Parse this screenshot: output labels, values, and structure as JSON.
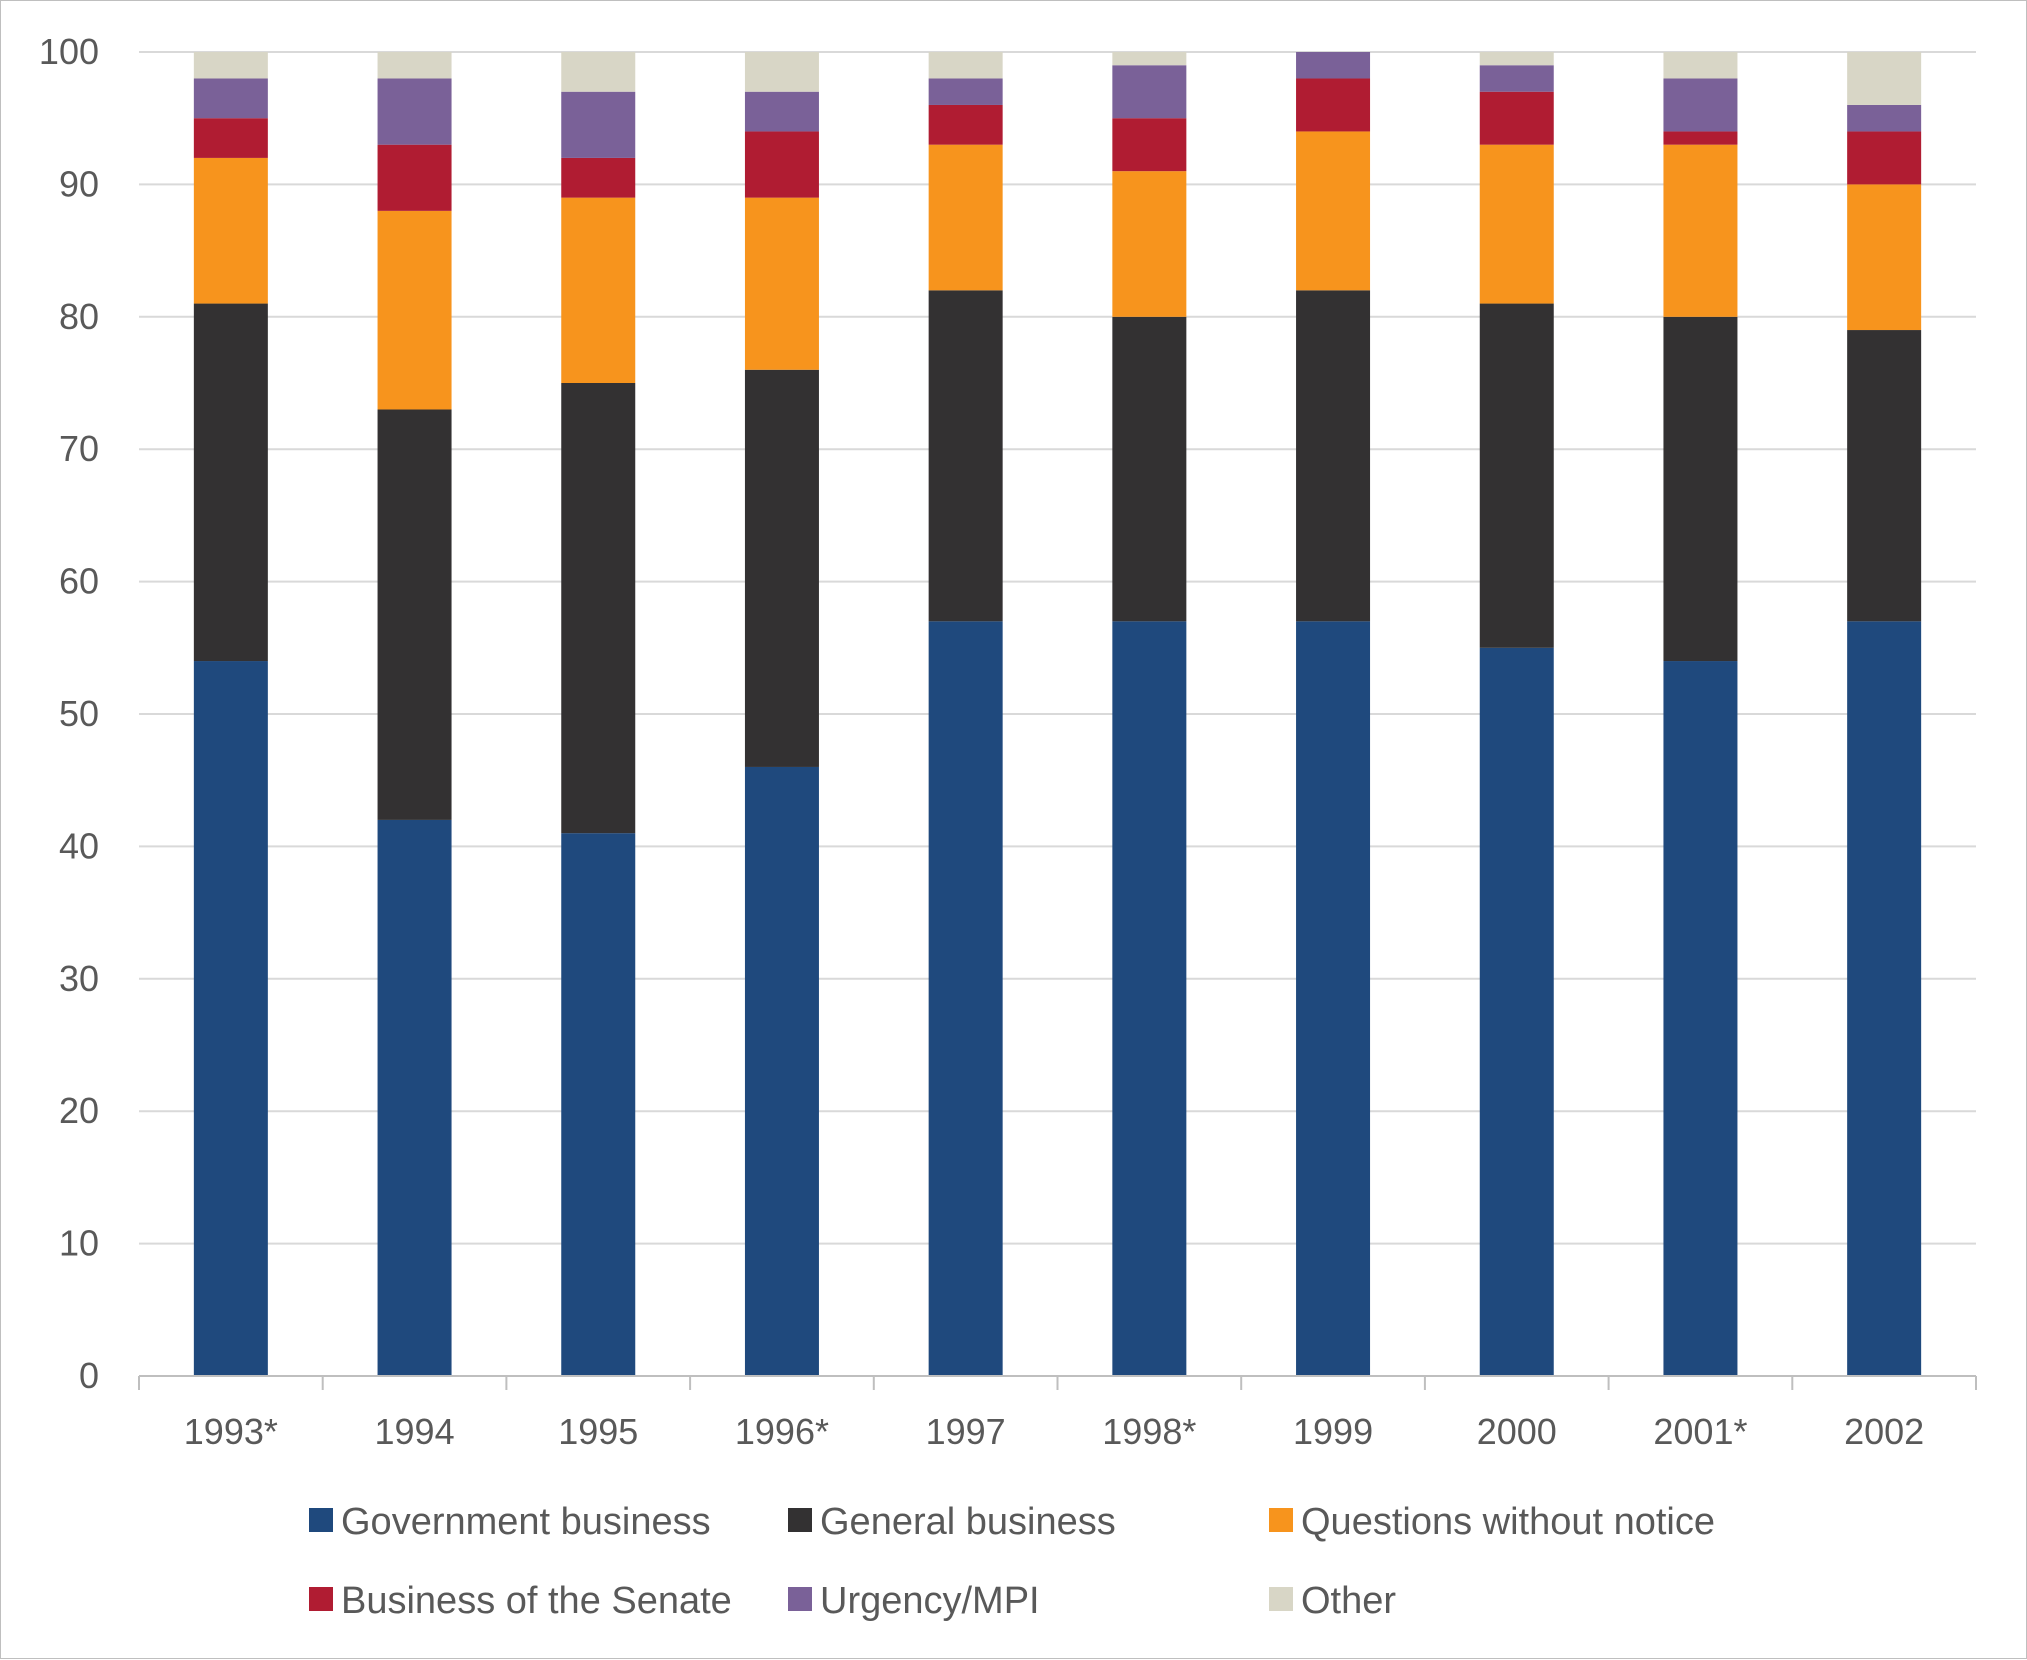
{
  "chart_data": {
    "type": "bar",
    "stacked": true,
    "title": "",
    "xlabel": "",
    "ylabel": "",
    "ylim": [
      0,
      100
    ],
    "yticks": [
      0,
      10,
      20,
      30,
      40,
      50,
      60,
      70,
      80,
      90,
      100
    ],
    "ytick_labels": [
      "0",
      "10",
      "20",
      "30",
      "40",
      "50",
      "60",
      "70",
      "80",
      "90",
      "100"
    ],
    "grid": true,
    "legend_position": "bottom",
    "categories": [
      "1993*",
      "1994",
      "1995",
      "1996*",
      "1997",
      "1998*",
      "1999",
      "2000",
      "2001*",
      "2002"
    ],
    "series": [
      {
        "name": "Government business",
        "color": "#1f497d",
        "values": [
          54,
          42,
          41,
          46,
          57,
          57,
          57,
          55,
          54,
          57
        ]
      },
      {
        "name": "General business",
        "color": "#333132",
        "values": [
          27,
          31,
          34,
          30,
          25,
          23,
          25,
          26,
          26,
          22
        ]
      },
      {
        "name": "Questions without notice",
        "color": "#f7941d",
        "values": [
          11,
          15,
          14,
          13,
          11,
          11,
          12,
          12,
          13,
          11
        ]
      },
      {
        "name": "Business of the Senate",
        "color": "#b01c32",
        "values": [
          3,
          5,
          3,
          5,
          3,
          4,
          4,
          4,
          1,
          4
        ]
      },
      {
        "name": "Urgency/MPI",
        "color": "#7a6198",
        "values": [
          3,
          5,
          5,
          3,
          2,
          4,
          2,
          2,
          4,
          2
        ]
      },
      {
        "name": "Other",
        "color": "#d8d6c6",
        "values": [
          2,
          2,
          3,
          3,
          2,
          1,
          0,
          1,
          2,
          4
        ]
      }
    ]
  }
}
